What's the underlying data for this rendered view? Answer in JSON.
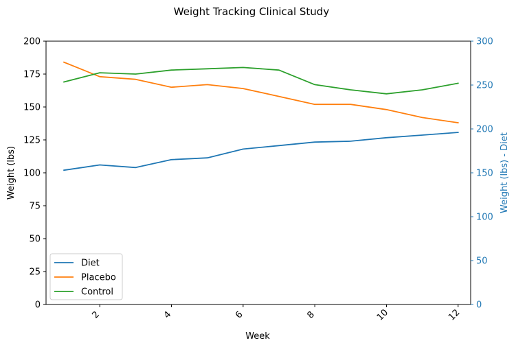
{
  "chart_data": {
    "type": "line",
    "title": "Weight Tracking Clinical Study",
    "xlabel": "Week",
    "ylabel": "Weight (lbs)",
    "y2label": "Weight (lbs) - Diet",
    "xlim": [
      0.5,
      12.35
    ],
    "ylim": [
      0,
      200
    ],
    "y2lim": [
      0,
      300
    ],
    "x_ticks": [
      2,
      4,
      6,
      8,
      10,
      12
    ],
    "y_ticks": [
      0,
      25,
      50,
      75,
      100,
      125,
      150,
      175,
      200
    ],
    "y2_ticks": [
      0,
      50,
      100,
      150,
      200,
      250,
      300
    ],
    "grid": false,
    "legend_position": "lower-left",
    "x": [
      1,
      2,
      3,
      4,
      5,
      6,
      7,
      8,
      9,
      10,
      11,
      12
    ],
    "series": [
      {
        "name": "Diet",
        "axis": "right",
        "color": "#1f77b4",
        "values": [
          153,
          159,
          156,
          165,
          167,
          177,
          181,
          185,
          186,
          190,
          193,
          196
        ]
      },
      {
        "name": "Placebo",
        "axis": "left",
        "color": "#ff7f0e",
        "values": [
          184,
          173,
          171,
          165,
          167,
          164,
          158,
          152,
          152,
          148,
          142,
          138
        ]
      },
      {
        "name": "Control",
        "axis": "left",
        "color": "#2ca02c",
        "values": [
          169,
          176,
          175,
          178,
          179,
          180,
          178,
          167,
          163,
          160,
          163,
          168
        ]
      }
    ],
    "colors": {
      "right_axis": "#1f77b4",
      "axes": "#000000"
    }
  }
}
